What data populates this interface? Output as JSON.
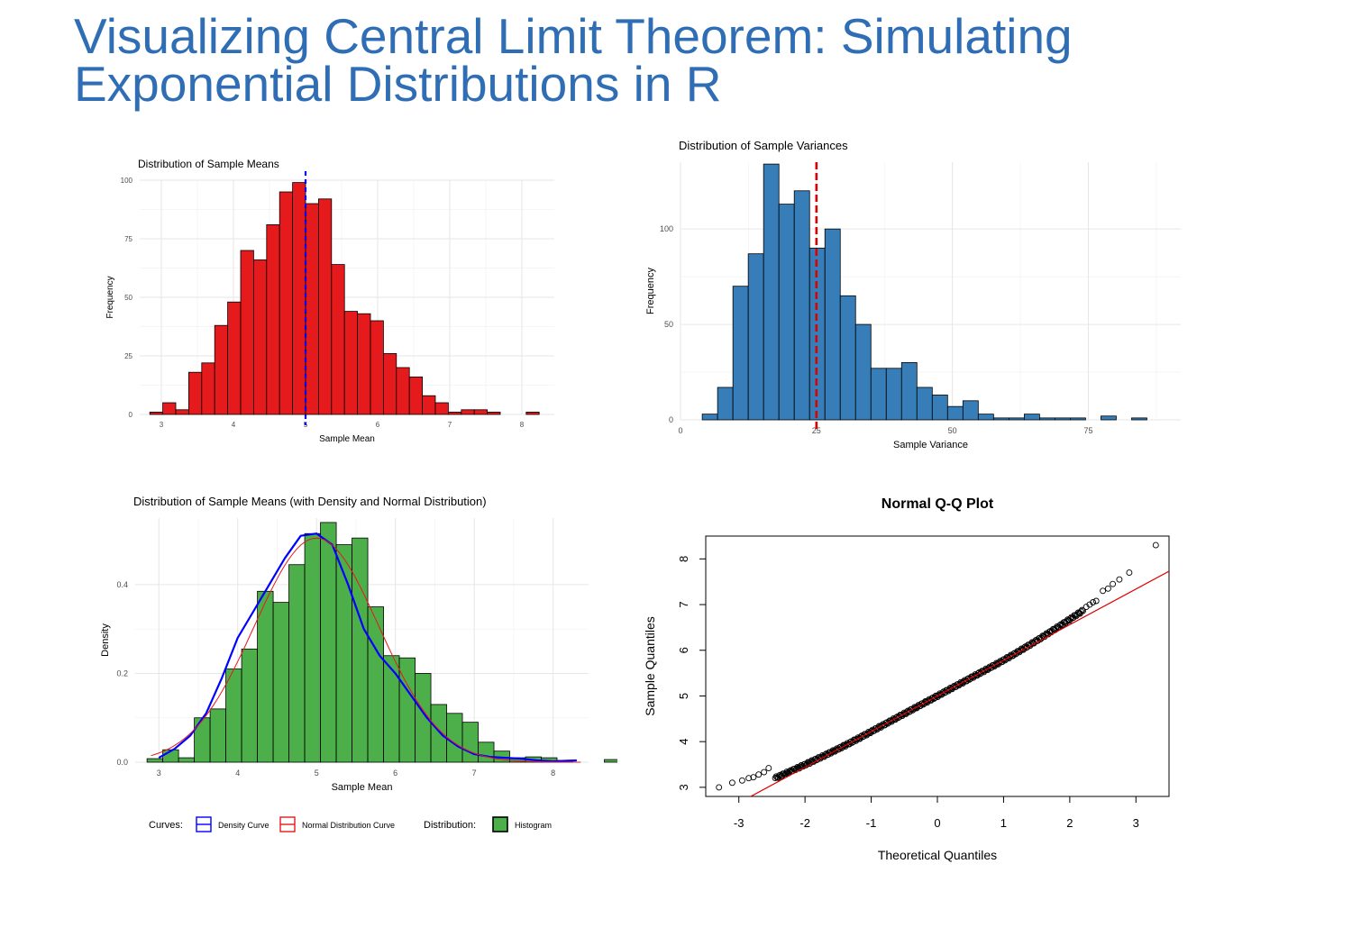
{
  "slide": {
    "title": "Visualizing Central Limit Theorem: Simulating Exponential Distributions in R"
  },
  "colors": {
    "title": "#2f6eb5",
    "means_bar": "#e41a1c",
    "variance_bar": "#377eb8",
    "density_bar": "#4daf4a",
    "blue_line": "#0000ff",
    "red_line": "#e41a1c",
    "qq_line": "#dd0000"
  },
  "chart_data": [
    {
      "type": "bar",
      "title": "Distribution of Sample Means",
      "xlabel": "Sample Mean",
      "ylabel": "Frequency",
      "xlim": [
        2.7,
        8.45
      ],
      "ylim": [
        0,
        100
      ],
      "x_ticks": [
        3,
        4,
        5,
        6,
        7,
        8
      ],
      "y_ticks": [
        0,
        25,
        50,
        75,
        100
      ],
      "bin_width": 0.18,
      "bin_start": 2.84,
      "values": [
        1,
        5,
        2,
        18,
        22,
        38,
        48,
        70,
        66,
        81,
        95,
        99,
        90,
        92,
        64,
        44,
        43,
        40,
        26,
        20,
        16,
        8,
        5,
        1,
        2,
        2,
        1,
        0,
        0,
        1
      ],
      "vline": {
        "x": 5.0,
        "color": "#0000ff",
        "style": "dashed"
      }
    },
    {
      "type": "bar",
      "title": "Distribution of Sample Variances",
      "xlabel": "Sample Variance",
      "ylabel": "Frequency",
      "xlim": [
        0,
        92
      ],
      "ylim": [
        0,
        135
      ],
      "x_ticks": [
        0,
        25,
        50,
        75
      ],
      "y_ticks": [
        0,
        50,
        100
      ],
      "bin_width": 2.82,
      "bin_start": 4.0,
      "values": [
        3,
        17,
        70,
        87,
        134,
        113,
        120,
        90,
        100,
        65,
        50,
        27,
        27,
        30,
        17,
        13,
        7,
        10,
        3,
        1,
        1,
        3,
        1,
        1,
        1,
        0,
        2,
        0,
        1
      ],
      "vline": {
        "x": 25.0,
        "color": "#dd0000",
        "style": "dashed"
      }
    },
    {
      "type": "bar",
      "title": "Distribution of Sample Means (with Density and Normal Distribution)",
      "xlabel": "Sample Mean",
      "ylabel": "Density",
      "xlim": [
        2.7,
        8.45
      ],
      "ylim": [
        0,
        0.55
      ],
      "x_ticks": [
        3,
        4,
        5,
        6,
        7,
        8
      ],
      "y_ticks": [
        0.0,
        0.2,
        0.4
      ],
      "y_tick_labels": [
        "0.0",
        "0.2",
        "0.4"
      ],
      "bin_width": 0.2,
      "bin_start": 2.85,
      "values": [
        0.008,
        0.028,
        0.01,
        0.1,
        0.12,
        0.21,
        0.255,
        0.385,
        0.36,
        0.445,
        0.515,
        0.54,
        0.49,
        0.505,
        0.35,
        0.24,
        0.235,
        0.2,
        0.13,
        0.11,
        0.09,
        0.045,
        0.025,
        0.01,
        0.012,
        0.01,
        0.004,
        0,
        0,
        0.006
      ],
      "density_curve": {
        "x": [
          3.0,
          3.2,
          3.4,
          3.6,
          3.8,
          4.0,
          4.2,
          4.4,
          4.6,
          4.8,
          5.0,
          5.2,
          5.4,
          5.6,
          5.8,
          6.0,
          6.2,
          6.4,
          6.6,
          6.8,
          7.0,
          7.2,
          7.4,
          7.6,
          7.8,
          8.0,
          8.3
        ],
        "y": [
          0.01,
          0.03,
          0.06,
          0.11,
          0.19,
          0.28,
          0.34,
          0.4,
          0.46,
          0.51,
          0.515,
          0.49,
          0.4,
          0.3,
          0.24,
          0.2,
          0.15,
          0.1,
          0.06,
          0.035,
          0.018,
          0.012,
          0.01,
          0.008,
          0.004,
          0.002,
          0.004
        ]
      },
      "normal_curve": {
        "mean": 5.0,
        "sd": 0.79
      },
      "legend": {
        "curves_title": "Curves:",
        "curve_items": [
          "Density Curve",
          "Normal Distribution Curve"
        ],
        "dist_title": "Distribution:",
        "dist_items": [
          "Histogram"
        ]
      }
    },
    {
      "type": "scatter",
      "title": "Normal Q-Q Plot",
      "xlabel": "Theoretical Quantiles",
      "ylabel": "Sample Quantiles",
      "xlim": [
        -3.5,
        3.5
      ],
      "ylim": [
        2.8,
        8.5
      ],
      "x_ticks": [
        -3,
        -2,
        -1,
        0,
        1,
        2,
        3
      ],
      "y_ticks": [
        3,
        4,
        5,
        6,
        7,
        8
      ],
      "qq_line": {
        "intercept": 5.0,
        "slope": 0.78
      },
      "lower_tail": [
        [
          -3.3,
          3.0
        ],
        [
          -3.1,
          3.1
        ],
        [
          -2.95,
          3.15
        ],
        [
          -2.85,
          3.2
        ],
        [
          -2.78,
          3.22
        ],
        [
          -2.7,
          3.28
        ],
        [
          -2.62,
          3.33
        ],
        [
          -2.55,
          3.42
        ]
      ],
      "upper_tail": [
        [
          2.25,
          6.95
        ],
        [
          2.3,
          7.0
        ],
        [
          2.35,
          7.05
        ],
        [
          2.4,
          7.08
        ],
        [
          2.5,
          7.3
        ],
        [
          2.58,
          7.35
        ],
        [
          2.65,
          7.45
        ],
        [
          2.75,
          7.55
        ],
        [
          2.9,
          7.7
        ],
        [
          3.3,
          8.3
        ]
      ]
    }
  ]
}
